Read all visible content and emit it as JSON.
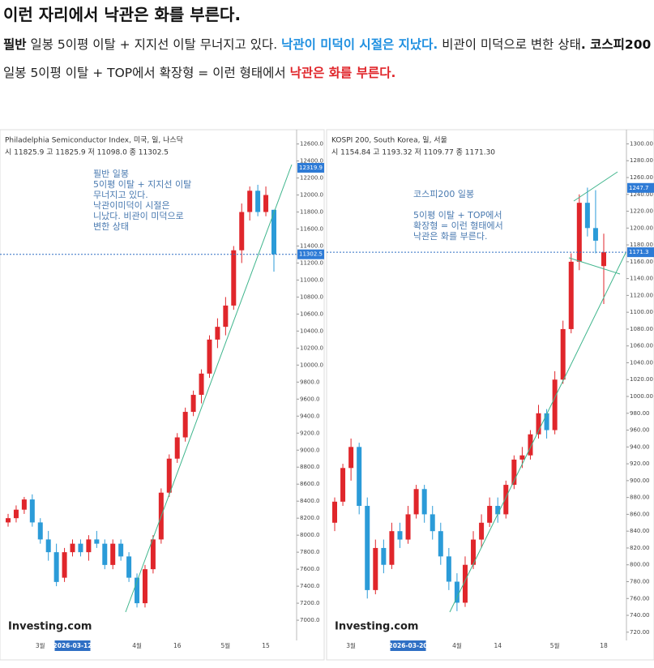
{
  "header": {
    "title": "이런 자리에서 낙관은 화를 부른다.",
    "runs": [
      {
        "text": "필반",
        "style": "bold"
      },
      {
        "text": " 일봉 5이평 이탈 + 지지선 이탈 무너지고 있다. ",
        "style": "normal"
      },
      {
        "text": "낙관이 미덕이 시절은 지났다.",
        "style": "blue"
      },
      {
        "text": " 비관이 미덕으로 변한 상태",
        "style": "normal"
      },
      {
        "text": ". 코스피200",
        "style": "bold"
      },
      {
        "text": " 일봉 5이평 이탈 + TOP에서 확장형 = 이런 형태에서 ",
        "style": "normal"
      },
      {
        "text": "낙관은 화를 부른다.",
        "style": "red"
      }
    ]
  },
  "chart_data": [
    {
      "type": "candlestick",
      "title": "Philadelphia Semiconductor Index, 미국, 일, 나스닥",
      "info": "시 11825.9 고 11825.9 저 11098.0 종 11302.5",
      "logo": "Investing.com",
      "annotation": [
        [
          "필반 일봉",
          "5이평 이탈 + 지지선 이탈",
          "무너지고 있다.",
          "낙관이미덕이 시절은",
          "니났다. 비관이 미덕으로",
          "변한 상태"
        ]
      ],
      "up_color": "#e0262b",
      "down_color": "#2b9bd8",
      "crosshair_index": 8,
      "categories": [
        null,
        null,
        null,
        null,
        "3월",
        null,
        null,
        null,
        "2026-03-12",
        null,
        null,
        null,
        null,
        null,
        null,
        null,
        "4월",
        null,
        null,
        null,
        null,
        "16",
        null,
        null,
        null,
        null,
        null,
        "5월",
        null,
        null,
        null,
        null,
        "15",
        null
      ],
      "open": [
        8150,
        8200,
        8300,
        8420,
        8150,
        7950,
        7800,
        7500,
        7800,
        7900,
        7800,
        7950,
        7900,
        7650,
        7900,
        7750,
        7500,
        7200,
        7600,
        7950,
        8500,
        8900,
        9150,
        9450,
        9650,
        9900,
        10300,
        10450,
        10700,
        11350,
        11800,
        12050,
        11800,
        11825.9
      ],
      "high": [
        8250,
        8350,
        8450,
        8480,
        8200,
        8050,
        7900,
        7850,
        7950,
        7950,
        8000,
        8050,
        7950,
        7950,
        7950,
        7800,
        7550,
        7650,
        8000,
        8550,
        8950,
        9200,
        9500,
        9700,
        9950,
        10350,
        10550,
        10800,
        11400,
        11900,
        12100,
        12120,
        12100,
        11825.9
      ],
      "low": [
        8100,
        8150,
        8250,
        8100,
        7900,
        7700,
        7400,
        7450,
        7750,
        7750,
        7700,
        7850,
        7600,
        7600,
        7700,
        7450,
        7150,
        7150,
        7550,
        7900,
        8450,
        8850,
        9100,
        9400,
        9550,
        9850,
        10200,
        10350,
        10650,
        11200,
        11700,
        11750,
        11750,
        11098
      ],
      "close": [
        8200,
        8300,
        8420,
        8150,
        7950,
        7800,
        7450,
        7800,
        7900,
        7800,
        7950,
        7900,
        7650,
        7900,
        7750,
        7500,
        7200,
        7600,
        7950,
        8500,
        8900,
        9150,
        9450,
        9650,
        9900,
        10300,
        10450,
        10700,
        11350,
        11800,
        12050,
        11800,
        12000,
        11302.5
      ],
      "price_tags": [
        12319.9,
        11302.5
      ],
      "ylim": [
        6810,
        12720
      ],
      "yticks": [
        {
          "value": 7000,
          "label": "7000.0"
        },
        {
          "value": 7200,
          "label": "7200.0"
        },
        {
          "value": 7400,
          "label": "7400.0"
        },
        {
          "value": 7600,
          "label": "7600.0"
        },
        {
          "value": 7800,
          "label": "7800.0"
        },
        {
          "value": 8000,
          "label": "8000.0"
        },
        {
          "value": 8200,
          "label": "8200.0"
        },
        {
          "value": 8400,
          "label": "8400.0"
        },
        {
          "value": 8600,
          "label": "8600.0"
        },
        {
          "value": 8800,
          "label": "8800.0"
        },
        {
          "value": 9000,
          "label": "9000.0"
        },
        {
          "value": 9200,
          "label": "9200.0"
        },
        {
          "value": 9400,
          "label": "9400.0"
        },
        {
          "value": 9600,
          "label": "9600.0"
        },
        {
          "value": 9800,
          "label": "9800.0"
        },
        {
          "value": 10000,
          "label": "10000.0"
        },
        {
          "value": 10200,
          "label": "10200.0"
        },
        {
          "value": 10400,
          "label": "10400.0"
        },
        {
          "value": 10600,
          "label": "10600.0"
        },
        {
          "value": 10800,
          "label": "10800.0"
        },
        {
          "value": 11000,
          "label": "11000.0"
        },
        {
          "value": 11200,
          "label": "11200.0"
        },
        {
          "value": 11400,
          "label": "11400.0"
        },
        {
          "value": 11600,
          "label": "11600.0"
        },
        {
          "value": 11800,
          "label": "11800.0"
        },
        {
          "value": 12000,
          "label": "12000.0"
        },
        {
          "value": 12200,
          "label": "12200.0"
        },
        {
          "value": 12400,
          "label": "12400.0"
        },
        {
          "value": 12600,
          "label": "12600.0"
        }
      ]
    },
    {
      "type": "candlestick",
      "title": "KOSPI 200, South Korea, 일, 서울",
      "info": "시 1154.84 고 1193.32 저 1109.77 종 1171.30",
      "logo": "Investing.com",
      "annotation": [
        [
          "코스피200 일봉"
        ],
        [
          "5이평 이탈 + TOP에서",
          "확장형 = 이런 형태에서",
          "낙관은 화를 부른다."
        ]
      ],
      "up_color": "#e0262b",
      "down_color": "#2b9bd8",
      "crosshair_index": 9,
      "categories": [
        null,
        null,
        "3월",
        null,
        null,
        null,
        null,
        null,
        null,
        "2026-03-20",
        null,
        null,
        null,
        null,
        null,
        "4월",
        null,
        null,
        null,
        null,
        "14",
        null,
        null,
        null,
        null,
        null,
        null,
        "5월",
        null,
        null,
        null,
        null,
        null,
        "18"
      ],
      "open": [
        850,
        875,
        915,
        940,
        870,
        770,
        820,
        800,
        840,
        830,
        860,
        890,
        860,
        840,
        810,
        780,
        755,
        800,
        830,
        850,
        870,
        860,
        895,
        925,
        930,
        955,
        980,
        960,
        1020,
        1080,
        1160,
        1230,
        1200,
        1154.84
      ],
      "high": [
        880,
        920,
        950,
        945,
        880,
        830,
        830,
        850,
        850,
        870,
        895,
        895,
        870,
        850,
        820,
        790,
        810,
        840,
        860,
        880,
        880,
        900,
        930,
        940,
        960,
        990,
        985,
        1030,
        1090,
        1170,
        1240,
        1248,
        1245,
        1193.32
      ],
      "low": [
        840,
        870,
        900,
        860,
        760,
        765,
        790,
        795,
        820,
        825,
        855,
        850,
        830,
        800,
        770,
        745,
        750,
        795,
        820,
        845,
        850,
        855,
        890,
        915,
        925,
        950,
        950,
        955,
        1015,
        1075,
        1150,
        1190,
        1170,
        1109.77
      ],
      "close": [
        875,
        915,
        940,
        870,
        770,
        820,
        800,
        840,
        830,
        860,
        890,
        860,
        840,
        810,
        780,
        755,
        800,
        830,
        850,
        870,
        860,
        895,
        925,
        930,
        955,
        980,
        960,
        1020,
        1080,
        1160,
        1230,
        1200,
        1185,
        1171.3
      ],
      "price_tags": [
        1247.7,
        1171.3
      ],
      "ylim": [
        715,
        1312
      ],
      "yticks": [
        {
          "value": 720,
          "label": "720.00"
        },
        {
          "value": 740,
          "label": "740.00"
        },
        {
          "value": 760,
          "label": "760.00"
        },
        {
          "value": 780,
          "label": "780.00"
        },
        {
          "value": 800,
          "label": "800.00"
        },
        {
          "value": 820,
          "label": "820.00"
        },
        {
          "value": 840,
          "label": "840.00"
        },
        {
          "value": 860,
          "label": "860.00"
        },
        {
          "value": 880,
          "label": "880.00"
        },
        {
          "value": 900,
          "label": "900.00"
        },
        {
          "value": 920,
          "label": "920.00"
        },
        {
          "value": 940,
          "label": "940.00"
        },
        {
          "value": 960,
          "label": "960.00"
        },
        {
          "value": 980,
          "label": "980.00"
        },
        {
          "value": 1000,
          "label": "1000.00"
        },
        {
          "value": 1020,
          "label": "1020.00"
        },
        {
          "value": 1040,
          "label": "1040.00"
        },
        {
          "value": 1060,
          "label": "1060.00"
        },
        {
          "value": 1080,
          "label": "1080.00"
        },
        {
          "value": 1100,
          "label": "1100.00"
        },
        {
          "value": 1120,
          "label": "1120.00"
        },
        {
          "value": 1140,
          "label": "1140.00"
        },
        {
          "value": 1160,
          "label": "1160.00"
        },
        {
          "value": 1180,
          "label": "1180.00"
        },
        {
          "value": 1200,
          "label": "1200.00"
        },
        {
          "value": 1220,
          "label": "1220.00"
        },
        {
          "value": 1240,
          "label": "1240.00"
        },
        {
          "value": 1260,
          "label": "1260.00"
        },
        {
          "value": 1280,
          "label": "1280.00"
        },
        {
          "value": 1300,
          "label": "1300.00"
        }
      ]
    }
  ]
}
